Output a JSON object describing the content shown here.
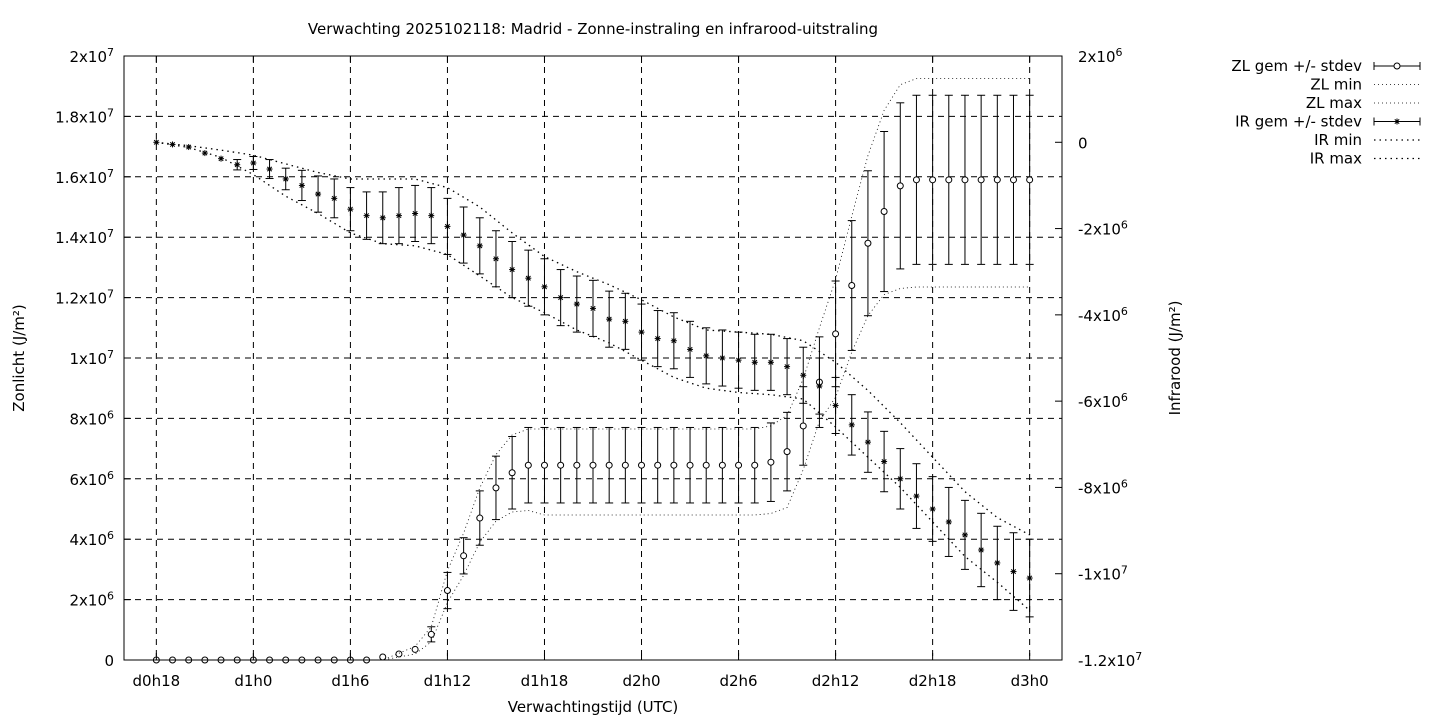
{
  "chart_data": {
    "type": "line",
    "title": "Verwachting 2025102118: Madrid - Zonne-instraling en infrarood-uitstraling",
    "xlabel": "Verwachtingstijd (UTC)",
    "ylabel": "Zonlicht (J/m²)",
    "y2label": "Infrarood (J/m²)",
    "x_unit": "hours since d0h18",
    "xlim": [
      -2,
      56
    ],
    "ylim": [
      0,
      20000000
    ],
    "y2lim": [
      -12000000,
      2000000
    ],
    "grid": true,
    "legend_position": "top-right, outside plot",
    "x_ticks": [
      {
        "x": 0,
        "label": "d0h18"
      },
      {
        "x": 6,
        "label": "d1h0"
      },
      {
        "x": 12,
        "label": "d1h6"
      },
      {
        "x": 18,
        "label": "d1h12"
      },
      {
        "x": 24,
        "label": "d1h18"
      },
      {
        "x": 30,
        "label": "d2h0"
      },
      {
        "x": 36,
        "label": "d2h6"
      },
      {
        "x": 42,
        "label": "d2h12"
      },
      {
        "x": 48,
        "label": "d2h18"
      },
      {
        "x": 54,
        "label": "d3h0"
      }
    ],
    "y_ticks": [
      {
        "v": 0,
        "base": "0",
        "exp": ""
      },
      {
        "v": 2000000,
        "base": "2x10",
        "exp": "6"
      },
      {
        "v": 4000000,
        "base": "4x10",
        "exp": "6"
      },
      {
        "v": 6000000,
        "base": "6x10",
        "exp": "6"
      },
      {
        "v": 8000000,
        "base": "8x10",
        "exp": "6"
      },
      {
        "v": 10000000,
        "base": "1x10",
        "exp": "7"
      },
      {
        "v": 12000000,
        "base": "1.2x10",
        "exp": "7"
      },
      {
        "v": 14000000,
        "base": "1.4x10",
        "exp": "7"
      },
      {
        "v": 16000000,
        "base": "1.6x10",
        "exp": "7"
      },
      {
        "v": 18000000,
        "base": "1.8x10",
        "exp": "7"
      },
      {
        "v": 20000000,
        "base": "2x10",
        "exp": "7"
      }
    ],
    "y2_ticks": [
      {
        "v": 2000000,
        "base": "2x10",
        "exp": "6"
      },
      {
        "v": 0,
        "base": "0",
        "exp": ""
      },
      {
        "v": -2000000,
        "base": "-2x10",
        "exp": "6"
      },
      {
        "v": -4000000,
        "base": "-4x10",
        "exp": "6"
      },
      {
        "v": -6000000,
        "base": "-6x10",
        "exp": "6"
      },
      {
        "v": -8000000,
        "base": "-8x10",
        "exp": "6"
      },
      {
        "v": -10000000,
        "base": "-1x10",
        "exp": "7"
      },
      {
        "v": -12000000,
        "base": "-1.2x10",
        "exp": "7"
      }
    ],
    "series": [
      {
        "name": "ZL gem +/- stdev",
        "axis": "left",
        "marker": "circle",
        "x": [
          0,
          1,
          2,
          3,
          4,
          5,
          6,
          7,
          8,
          9,
          10,
          11,
          12,
          13,
          14,
          15,
          16,
          17,
          18,
          19,
          20,
          21,
          22,
          23,
          24,
          25,
          26,
          27,
          28,
          29,
          30,
          31,
          32,
          33,
          34,
          35,
          36,
          37,
          38,
          39,
          40,
          41,
          42,
          43,
          44,
          45,
          46,
          47,
          48,
          49,
          50,
          51,
          52,
          53,
          54
        ],
        "y": [
          0,
          0,
          0,
          0,
          0,
          0,
          0,
          0,
          0,
          0,
          0,
          0,
          0,
          0,
          100000,
          200000,
          350000,
          850000,
          2300000,
          3450000,
          4700000,
          5700000,
          6200000,
          6450000,
          6450000,
          6450000,
          6450000,
          6450000,
          6450000,
          6450000,
          6450000,
          6450000,
          6450000,
          6450000,
          6450000,
          6450000,
          6450000,
          6450000,
          6550000,
          6900000,
          7750000,
          9200000,
          10800000,
          12400000,
          13800000,
          14850000,
          15700000,
          15900000,
          15900000,
          15900000,
          15900000,
          15900000,
          15900000,
          15900000,
          15900000
        ],
        "err": [
          0,
          0,
          0,
          0,
          0,
          0,
          0,
          0,
          0,
          0,
          0,
          0,
          0,
          0,
          0,
          0,
          0,
          250000,
          600000,
          600000,
          900000,
          1050000,
          1200000,
          1250000,
          1250000,
          1250000,
          1250000,
          1250000,
          1250000,
          1250000,
          1250000,
          1250000,
          1250000,
          1250000,
          1250000,
          1250000,
          1250000,
          1250000,
          1300000,
          1300000,
          1300000,
          1500000,
          1750000,
          2150000,
          2400000,
          2650000,
          2750000,
          2800000,
          2800000,
          2800000,
          2800000,
          2800000,
          2800000,
          2800000,
          2800000
        ]
      },
      {
        "name": "ZL min",
        "axis": "left",
        "style": "dotted",
        "x": [
          0,
          14,
          16,
          17,
          18,
          19,
          20,
          21,
          22,
          23,
          24,
          25,
          26,
          30,
          35,
          37,
          38,
          39,
          40,
          41,
          42,
          43,
          44,
          45,
          46,
          47,
          48,
          50,
          54
        ],
        "y": [
          0,
          0,
          200000,
          600000,
          1900000,
          2800000,
          3900000,
          4600000,
          4900000,
          4950000,
          4800000,
          4800000,
          4800000,
          4800000,
          4800000,
          4800000,
          4850000,
          5050000,
          6300000,
          7900000,
          8700000,
          10200000,
          11400000,
          12100000,
          12300000,
          12350000,
          12350000,
          12350000,
          12350000
        ]
      },
      {
        "name": "ZL max",
        "axis": "left",
        "style": "dotted",
        "x": [
          0,
          14,
          16,
          17,
          18,
          19,
          20,
          21,
          22,
          23,
          24,
          25,
          26,
          30,
          35,
          37,
          38,
          39,
          40,
          41,
          42,
          43,
          44,
          45,
          46,
          47,
          48,
          50,
          54
        ],
        "y": [
          0,
          0,
          450000,
          1100000,
          2950000,
          4200000,
          5700000,
          6800000,
          7450000,
          7650000,
          7650000,
          7650000,
          7650000,
          7650000,
          7650000,
          7650000,
          7750000,
          8100000,
          9300000,
          11000000,
          12600000,
          14700000,
          16700000,
          18200000,
          19050000,
          19250000,
          19250000,
          19250000,
          19250000
        ]
      },
      {
        "name": "IR gem +/- stdev",
        "axis": "right",
        "marker": "star",
        "x": [
          0,
          1,
          2,
          3,
          4,
          5,
          6,
          7,
          8,
          9,
          10,
          11,
          12,
          13,
          14,
          15,
          16,
          17,
          18,
          19,
          20,
          21,
          22,
          23,
          24,
          25,
          26,
          27,
          28,
          29,
          30,
          31,
          32,
          33,
          34,
          35,
          36,
          37,
          38,
          39,
          40,
          41,
          42,
          43,
          44,
          45,
          46,
          47,
          48,
          49,
          50,
          51,
          52,
          53,
          54
        ],
        "y": [
          0,
          -50000,
          -110000,
          -250000,
          -380000,
          -520000,
          -480000,
          -620000,
          -850000,
          -1000000,
          -1200000,
          -1300000,
          -1550000,
          -1700000,
          -1750000,
          -1700000,
          -1650000,
          -1700000,
          -1950000,
          -2150000,
          -2400000,
          -2700000,
          -2950000,
          -3150000,
          -3350000,
          -3600000,
          -3750000,
          -3850000,
          -4100000,
          -4150000,
          -4400000,
          -4550000,
          -4600000,
          -4800000,
          -4950000,
          -5000000,
          -5050000,
          -5100000,
          -5100000,
          -5200000,
          -5400000,
          -5650000,
          -6100000,
          -6550000,
          -6950000,
          -7400000,
          -7800000,
          -8200000,
          -8500000,
          -8800000,
          -9100000,
          -9450000,
          -9750000,
          -9950000,
          -10100000
        ],
        "err": [
          0,
          0,
          0,
          0,
          0,
          120000,
          150000,
          220000,
          250000,
          350000,
          420000,
          450000,
          500000,
          550000,
          600000,
          650000,
          650000,
          650000,
          650000,
          650000,
          650000,
          650000,
          650000,
          650000,
          650000,
          650000,
          650000,
          650000,
          650000,
          650000,
          650000,
          650000,
          650000,
          650000,
          650000,
          650000,
          650000,
          650000,
          650000,
          650000,
          650000,
          650000,
          650000,
          700000,
          700000,
          700000,
          700000,
          750000,
          750000,
          800000,
          800000,
          850000,
          850000,
          900000,
          900000
        ]
      },
      {
        "name": "IR min",
        "axis": "right",
        "style": "dotted",
        "x": [
          0,
          2,
          4,
          6,
          8,
          10,
          12,
          14,
          16,
          18,
          20,
          22,
          24,
          26,
          28,
          30,
          32,
          34,
          36,
          38,
          40,
          42,
          44,
          46,
          48,
          50,
          52,
          54
        ],
        "y": [
          0,
          -120000,
          -350000,
          -750000,
          -1250000,
          -1650000,
          -2100000,
          -2350000,
          -2400000,
          -2600000,
          -3100000,
          -3600000,
          -3950000,
          -4350000,
          -4650000,
          -5050000,
          -5450000,
          -5700000,
          -5800000,
          -5850000,
          -5950000,
          -6600000,
          -7300000,
          -8000000,
          -8800000,
          -9600000,
          -10200000,
          -10850000
        ]
      },
      {
        "name": "IR max",
        "axis": "right",
        "style": "dotted",
        "x": [
          0,
          2,
          4,
          6,
          8,
          10,
          12,
          14,
          16,
          18,
          20,
          22,
          24,
          26,
          28,
          30,
          32,
          34,
          36,
          38,
          40,
          42,
          44,
          46,
          48,
          50,
          52,
          54
        ],
        "y": [
          0,
          -80000,
          -180000,
          -300000,
          -500000,
          -700000,
          -850000,
          -850000,
          -850000,
          -1050000,
          -1500000,
          -2100000,
          -2650000,
          -3000000,
          -3300000,
          -3650000,
          -4050000,
          -4350000,
          -4400000,
          -4450000,
          -4600000,
          -5100000,
          -5750000,
          -6500000,
          -7300000,
          -8100000,
          -8700000,
          -9100000
        ]
      }
    ]
  }
}
